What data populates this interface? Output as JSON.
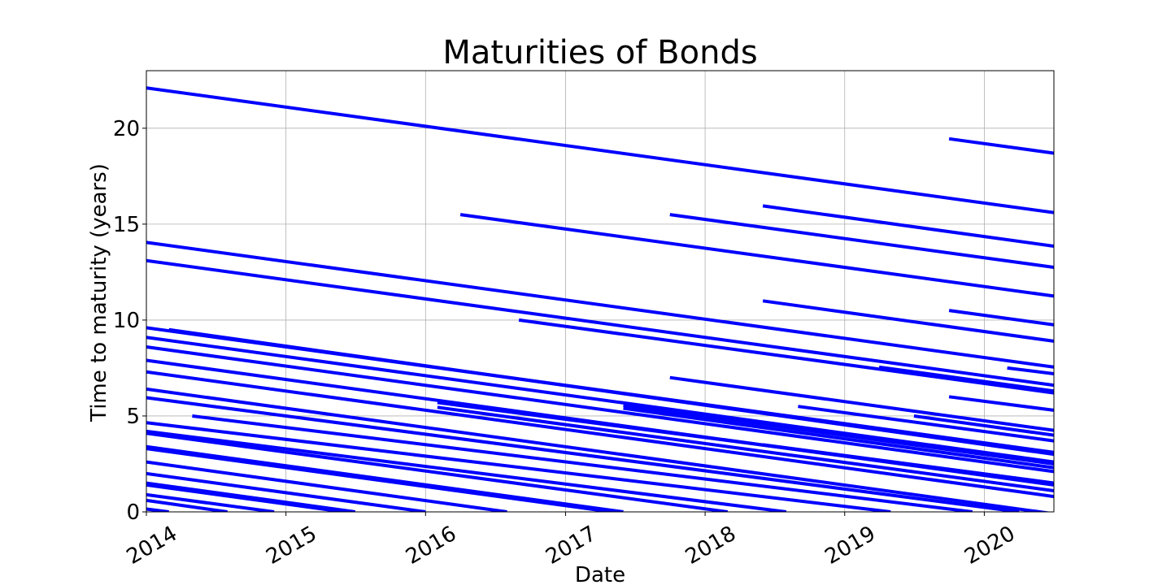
{
  "chart_data": {
    "type": "line",
    "title": "Maturities of Bonds",
    "xlabel": "Date",
    "ylabel": "Time to maturity (years)",
    "xlim": [
      "2014-01-01",
      "2020-07-01"
    ],
    "ylim": [
      0,
      23
    ],
    "xticks": [
      "2014",
      "2015",
      "2016",
      "2017",
      "2018",
      "2019",
      "2020"
    ],
    "yticks": [
      0,
      5,
      10,
      15,
      20
    ],
    "grid": true,
    "legend": "none",
    "colors": {
      "series": "#0000ff",
      "grid": "#b0b0b0",
      "frame": "#000000"
    },
    "series": [
      {
        "x": [
          "2014-01-01",
          "2020-07-01"
        ],
        "y": [
          22.1,
          15.6
        ]
      },
      {
        "x": [
          "2019-10-01",
          "2020-07-01"
        ],
        "y": [
          19.45,
          18.7
        ]
      },
      {
        "x": [
          "2018-06-01",
          "2020-07-01"
        ],
        "y": [
          15.95,
          13.85
        ]
      },
      {
        "x": [
          "2016-04-01",
          "2020-07-01"
        ],
        "y": [
          15.5,
          11.25
        ]
      },
      {
        "x": [
          "2017-10-01",
          "2020-07-01"
        ],
        "y": [
          15.5,
          12.75
        ]
      },
      {
        "x": [
          "2014-01-01",
          "2020-07-01"
        ],
        "y": [
          14.05,
          7.55
        ]
      },
      {
        "x": [
          "2014-01-01",
          "2020-07-01"
        ],
        "y": [
          13.1,
          6.6
        ]
      },
      {
        "x": [
          "2018-06-01",
          "2020-07-01"
        ],
        "y": [
          11.0,
          8.9
        ]
      },
      {
        "x": [
          "2019-10-01",
          "2020-07-01"
        ],
        "y": [
          10.5,
          9.75
        ]
      },
      {
        "x": [
          "2016-09-01",
          "2020-07-01"
        ],
        "y": [
          10.0,
          6.2
        ]
      },
      {
        "x": [
          "2014-01-01",
          "2020-07-01"
        ],
        "y": [
          9.6,
          3.1
        ]
      },
      {
        "x": [
          "2014-03-01",
          "2020-07-01"
        ],
        "y": [
          9.5,
          3.0
        ]
      },
      {
        "x": [
          "2014-01-01",
          "2020-07-01"
        ],
        "y": [
          9.1,
          2.6
        ]
      },
      {
        "x": [
          "2014-01-01",
          "2020-07-01"
        ],
        "y": [
          8.6,
          2.1
        ]
      },
      {
        "x": [
          "2014-01-01",
          "2020-07-01"
        ],
        "y": [
          7.9,
          1.4
        ]
      },
      {
        "x": [
          "2019-04-01",
          "2020-07-01"
        ],
        "y": [
          7.55,
          6.3
        ]
      },
      {
        "x": [
          "2020-03-01",
          "2020-07-01"
        ],
        "y": [
          7.5,
          7.2
        ]
      },
      {
        "x": [
          "2014-01-01",
          "2020-07-01"
        ],
        "y": [
          7.3,
          0.8
        ]
      },
      {
        "x": [
          "2017-10-01",
          "2020-07-01"
        ],
        "y": [
          7.0,
          4.25
        ]
      },
      {
        "x": [
          "2014-01-01",
          "2020-07-01"
        ],
        "y": [
          6.4,
          -0.1
        ]
      },
      {
        "x": [
          "2014-01-01",
          "2020-04-01"
        ],
        "y": [
          5.95,
          0.0
        ]
      },
      {
        "x": [
          "2019-10-01",
          "2020-07-01"
        ],
        "y": [
          6.0,
          5.3
        ]
      },
      {
        "x": [
          "2016-02-01",
          "2020-07-01"
        ],
        "y": [
          5.7,
          1.5
        ]
      },
      {
        "x": [
          "2016-02-01",
          "2020-07-01"
        ],
        "y": [
          5.45,
          1.1
        ]
      },
      {
        "x": [
          "2017-06-01",
          "2020-07-01"
        ],
        "y": [
          5.55,
          2.5
        ]
      },
      {
        "x": [
          "2017-06-01",
          "2020-07-01"
        ],
        "y": [
          5.4,
          2.3
        ]
      },
      {
        "x": [
          "2018-09-01",
          "2020-07-01"
        ],
        "y": [
          5.5,
          3.7
        ]
      },
      {
        "x": [
          "2019-07-01",
          "2020-07-01"
        ],
        "y": [
          5.0,
          4.0
        ]
      },
      {
        "x": [
          "2014-05-01",
          "2019-12-01"
        ],
        "y": [
          5.0,
          0.0
        ]
      },
      {
        "x": [
          "2014-01-01",
          "2019-05-01"
        ],
        "y": [
          4.65,
          0.0
        ]
      },
      {
        "x": [
          "2018-06-01",
          "2020-07-01"
        ],
        "y": [
          3.5,
          1.5
        ]
      },
      {
        "x": [
          "2014-01-01",
          "2018-08-01"
        ],
        "y": [
          4.2,
          0.0
        ]
      },
      {
        "x": [
          "2014-01-01",
          "2018-03-01"
        ],
        "y": [
          4.1,
          0.0
        ]
      },
      {
        "x": [
          "2014-01-01",
          "2017-06-01"
        ],
        "y": [
          3.4,
          0.0
        ]
      },
      {
        "x": [
          "2014-01-01",
          "2017-05-01"
        ],
        "y": [
          3.3,
          0.0
        ]
      },
      {
        "x": [
          "2014-01-01",
          "2016-08-01"
        ],
        "y": [
          2.6,
          0.0
        ]
      },
      {
        "x": [
          "2014-01-01",
          "2016-01-01"
        ],
        "y": [
          2.0,
          0.0
        ]
      },
      {
        "x": [
          "2014-01-01",
          "2015-07-01"
        ],
        "y": [
          1.5,
          0.0
        ]
      },
      {
        "x": [
          "2014-01-01",
          "2015-06-01"
        ],
        "y": [
          1.4,
          0.0
        ]
      },
      {
        "x": [
          "2014-01-01",
          "2014-12-01"
        ],
        "y": [
          0.9,
          0.0
        ]
      },
      {
        "x": [
          "2014-01-01",
          "2014-08-01"
        ],
        "y": [
          0.6,
          0.0
        ]
      },
      {
        "x": [
          "2014-01-01",
          "2014-03-01"
        ],
        "y": [
          0.15,
          0.0
        ]
      }
    ]
  }
}
